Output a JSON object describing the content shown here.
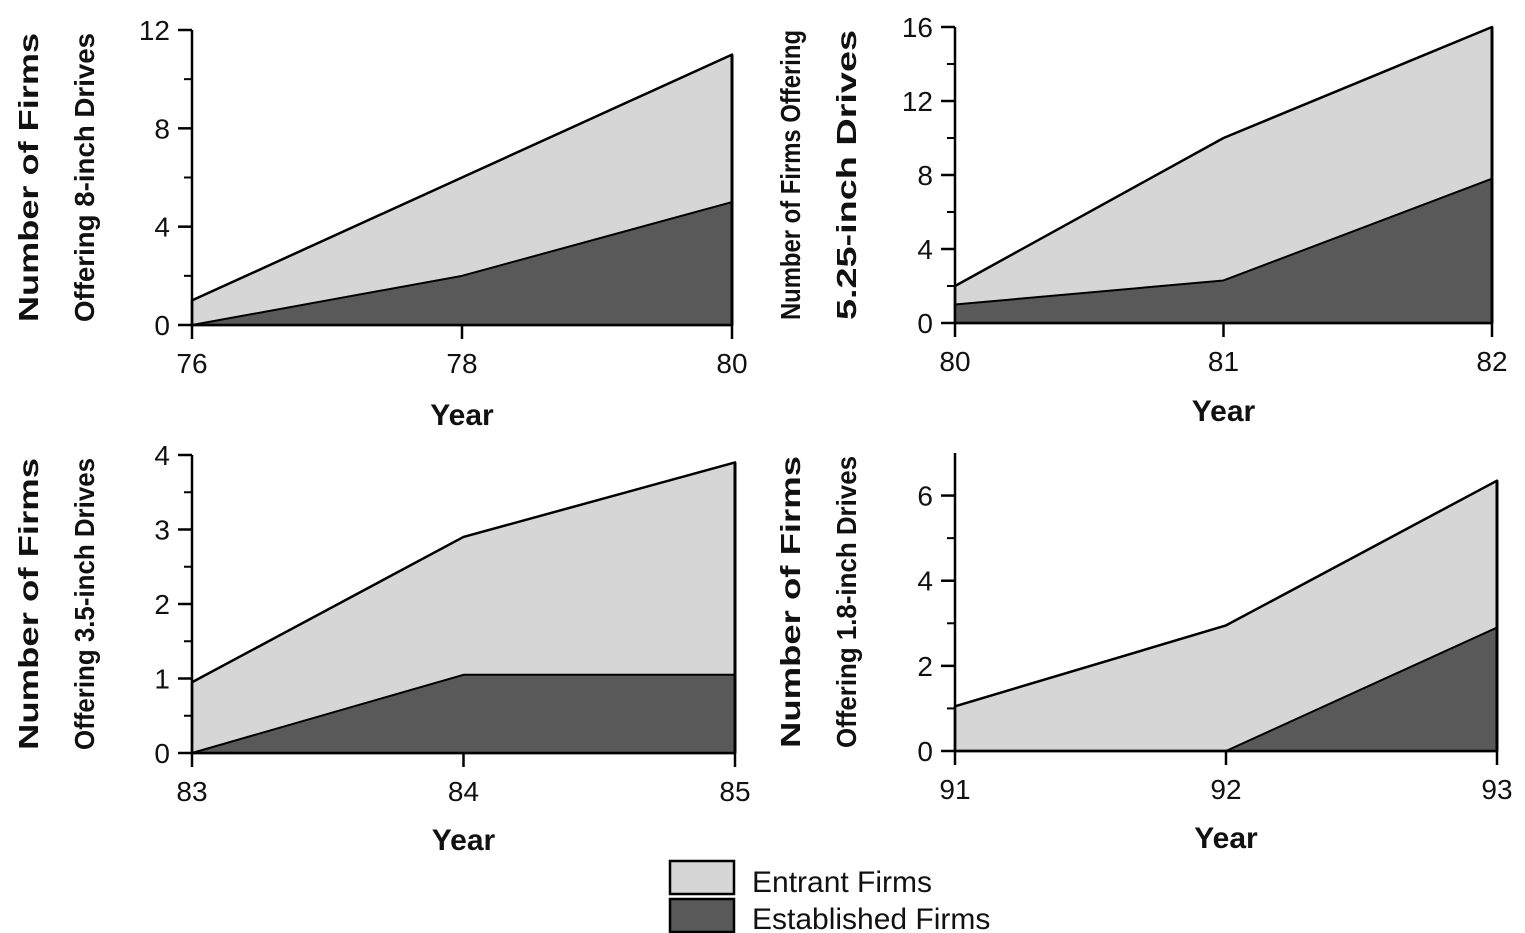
{
  "colors": {
    "entrant_fill": "#d6d6d6",
    "established_fill": "#595959",
    "outline": "#000000"
  },
  "legend": {
    "entrant": "Entrant Firms",
    "established": "Established Firms"
  },
  "chart_data": [
    {
      "type": "area",
      "stacked": true,
      "x": [
        76,
        78,
        80
      ],
      "xticks": [
        "76",
        "78",
        "80"
      ],
      "xlim": [
        76,
        80
      ],
      "yticks": [
        0,
        4,
        8,
        12
      ],
      "ylim": [
        0,
        12
      ],
      "xlabel": "Year",
      "ylabel": [
        "Number of Firms",
        "Offering 8-inch Drives"
      ],
      "series": [
        {
          "name": "Established Firms",
          "values": [
            0,
            2,
            5
          ]
        },
        {
          "name": "Entrant Firms",
          "values": [
            1,
            4,
            6
          ]
        }
      ],
      "totals": [
        1,
        6,
        11
      ]
    },
    {
      "type": "area",
      "stacked": true,
      "x": [
        80,
        81,
        82
      ],
      "xticks": [
        "80",
        "81",
        "82"
      ],
      "xlim": [
        80,
        82
      ],
      "yticks": [
        0,
        4,
        8,
        12,
        16
      ],
      "ylim": [
        0,
        16
      ],
      "xlabel": "Year",
      "ylabel": [
        "Number of Firms Offering",
        "5.25-inch Drives"
      ],
      "series": [
        {
          "name": "Established Firms",
          "values": [
            1,
            2.3,
            7.8
          ]
        },
        {
          "name": "Entrant Firms",
          "values": [
            1,
            7.7,
            8.2
          ]
        }
      ],
      "totals": [
        2,
        10,
        16
      ]
    },
    {
      "type": "area",
      "stacked": true,
      "x": [
        83,
        84,
        85
      ],
      "xticks": [
        "83",
        "84",
        "85"
      ],
      "xlim": [
        83,
        85
      ],
      "yticks": [
        0,
        1,
        2,
        3,
        4
      ],
      "ylim": [
        0,
        4
      ],
      "xlabel": "Year",
      "ylabel": [
        "Number of Firms",
        "Offering 3.5-inch Drives"
      ],
      "series": [
        {
          "name": "Established Firms",
          "values": [
            0,
            1.05,
            1.05
          ]
        },
        {
          "name": "Entrant Firms",
          "values": [
            0.95,
            1.85,
            2.85
          ]
        }
      ],
      "totals": [
        0.95,
        2.9,
        3.9
      ]
    },
    {
      "type": "area",
      "stacked": true,
      "x": [
        91,
        92,
        93
      ],
      "xticks": [
        "91",
        "92",
        "93"
      ],
      "xlim": [
        91,
        93
      ],
      "yticks": [
        0,
        2,
        4,
        6
      ],
      "ylim": [
        0,
        7
      ],
      "xlabel": "Year",
      "ylabel": [
        "Number of Firms",
        "Offering 1.8-inch Drives"
      ],
      "series": [
        {
          "name": "Established Firms",
          "values": [
            0,
            0,
            2.9
          ]
        },
        {
          "name": "Entrant Firms",
          "values": [
            1.05,
            2.95,
            3.45
          ]
        }
      ],
      "totals": [
        1.05,
        2.95,
        6.35
      ]
    }
  ]
}
